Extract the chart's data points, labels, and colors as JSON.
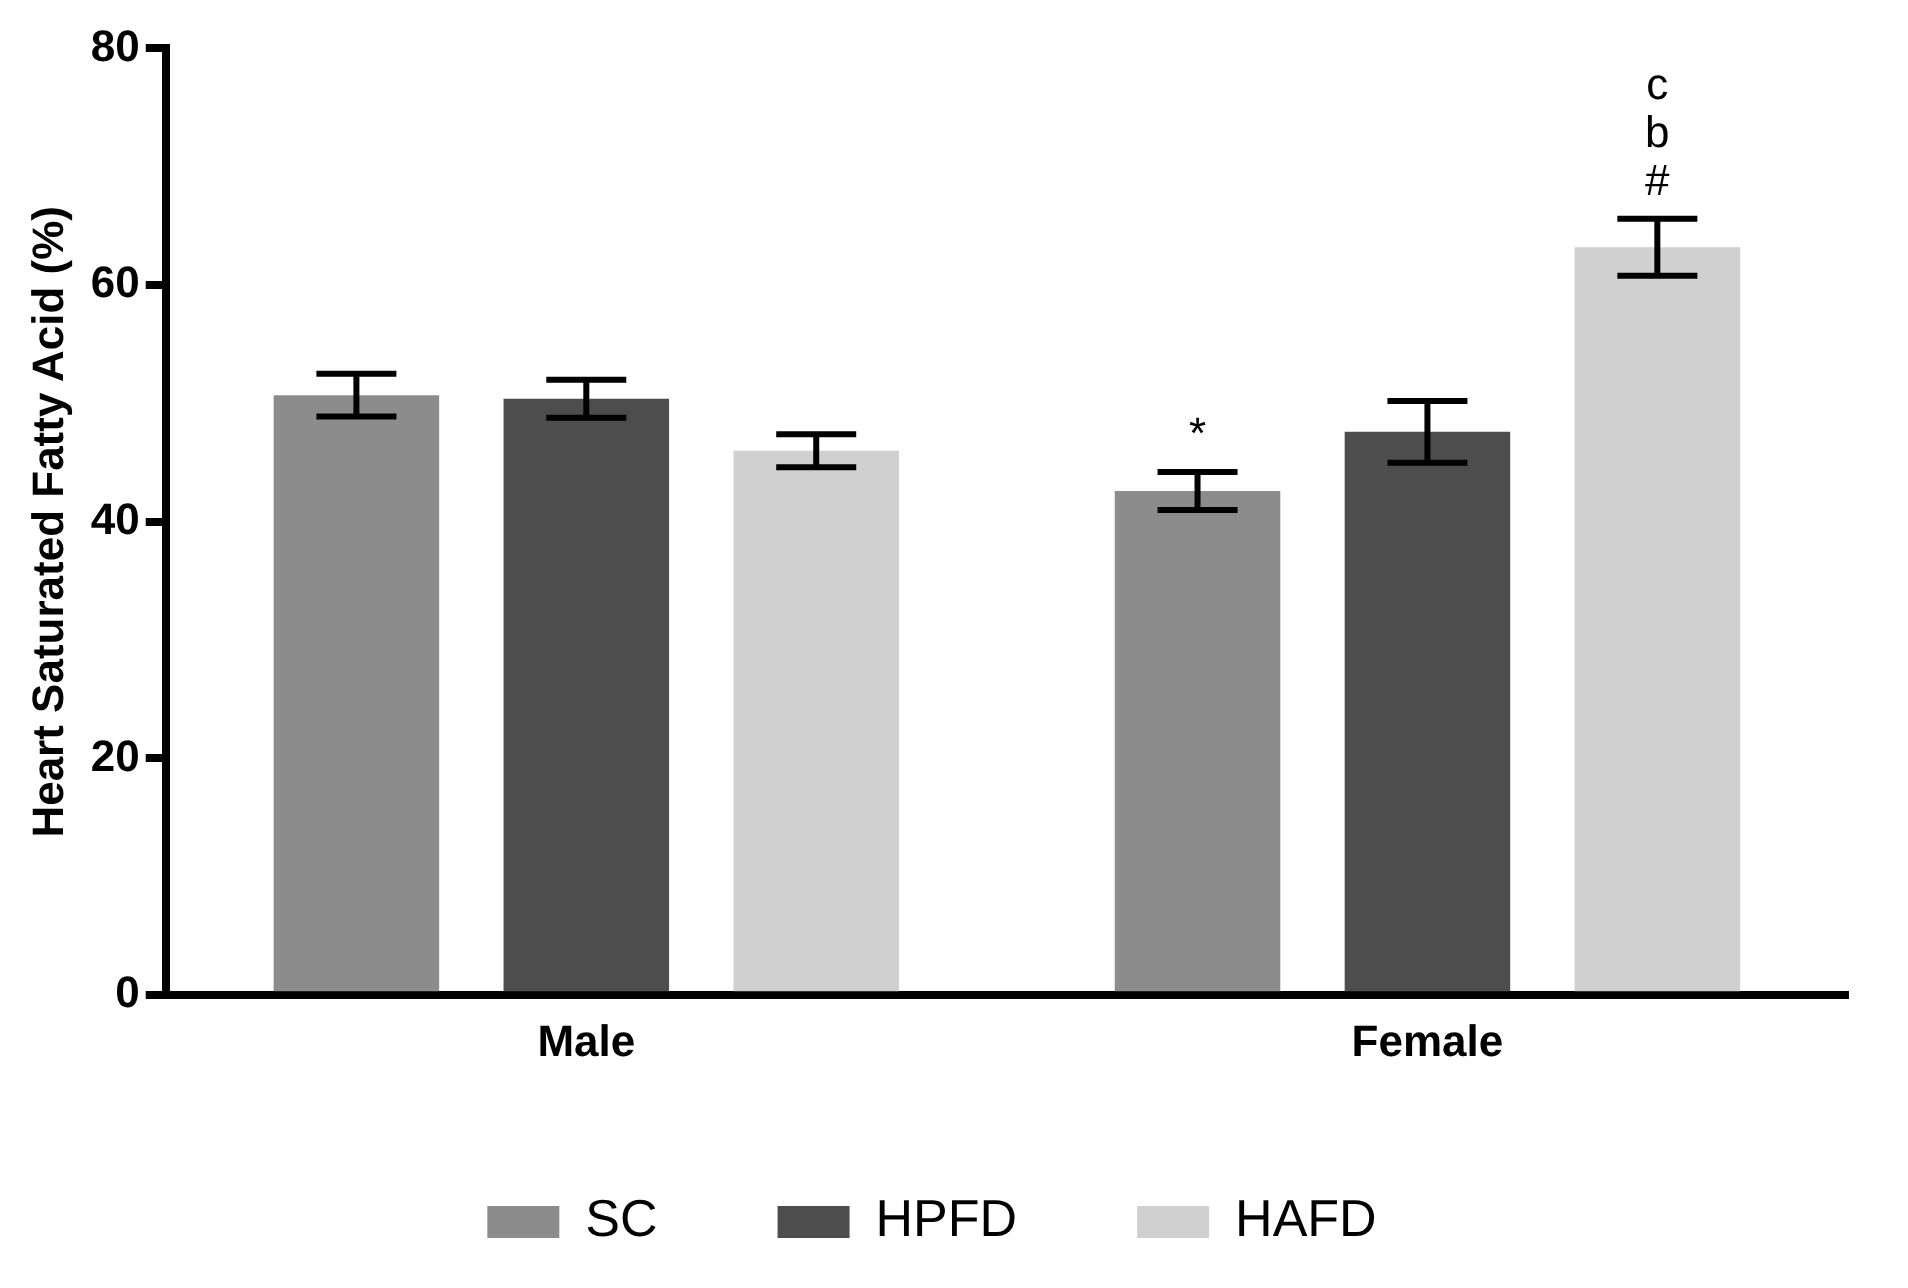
{
  "chart_data": {
    "type": "bar",
    "ylabel": "Heart Saturated Fatty Acid (%)",
    "categories": [
      "Male",
      "Female"
    ],
    "series": [
      {
        "name": "SC",
        "color": "#8c8c8c",
        "values": [
          50.7,
          42.6
        ],
        "errors": [
          1.8,
          1.6
        ]
      },
      {
        "name": "HPFD",
        "color": "#4d4d4d",
        "values": [
          50.4,
          47.6
        ],
        "errors": [
          1.6,
          2.6
        ]
      },
      {
        "name": "HAFD",
        "color": "#d0d0d0",
        "values": [
          46.0,
          63.2
        ],
        "errors": [
          1.4,
          2.4
        ]
      }
    ],
    "annotations": [
      "*",
      "#",
      "b",
      "c"
    ],
    "ylim": [
      0,
      80
    ],
    "yticks": [
      0,
      20,
      40,
      60,
      80
    ],
    "grid": false,
    "legend": "bottom"
  }
}
